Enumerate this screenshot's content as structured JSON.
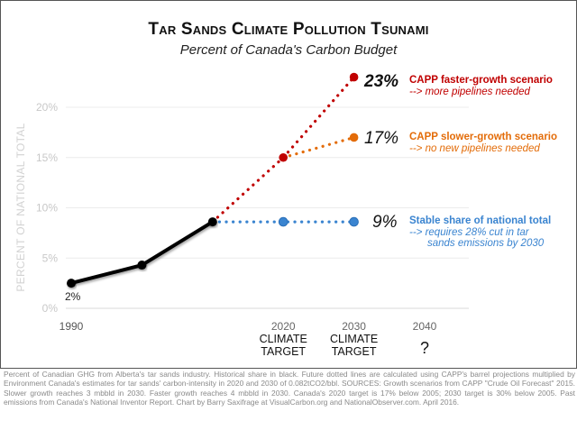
{
  "title": "Tar Sands Climate Pollution Tsunami",
  "subtitle": "Percent of Canada's Carbon Budget",
  "footer": "Percent of Canadian GHG from Alberta's tar sands industry. Historical share in black. Future dotted lines are calculated using CAPP's barrel projections multiplied by Environment Canada's estimates for tar sands' carbon-intensity in 2020 and 2030 of 0.082tCO2/bbl. SOURCES: Growth scenarios from CAPP \"Crude Oil Forecast\" 2015. Slower growth reaches 3 mbbld in 2030. Faster growth reaches 4 mbbld in 2030. Canada's 2020 target is 17% below 2005; 2030 target is 30% below 2005. Past emissions from Canada's National Inventor Report. Chart by Barry Saxifrage at VisualCarbon.org and NationalObserver.com. April 2016.",
  "chart_data": {
    "type": "line",
    "title": "Tar Sands Climate Pollution Tsunami",
    "subtitle": "Percent of Canada's Carbon Budget",
    "xlabel": "",
    "ylabel": "PERCENT OF NATIONAL TOTAL",
    "xlim": [
      1990,
      2040
    ],
    "ylim": [
      0,
      20
    ],
    "grid": true,
    "yticks": [
      {
        "value": 0,
        "label": "0%"
      },
      {
        "value": 5,
        "label": "5%"
      },
      {
        "value": 10,
        "label": "10%"
      },
      {
        "value": 15,
        "label": "15%"
      },
      {
        "value": 20,
        "label": "20%"
      }
    ],
    "xticks": [
      {
        "value": 1990,
        "label": "1990",
        "sublabel": ""
      },
      {
        "value": 2020,
        "label": "2020",
        "sublabel": "CLIMATE TARGET"
      },
      {
        "value": 2030,
        "label": "2030",
        "sublabel": "CLIMATE TARGET"
      },
      {
        "value": 2040,
        "label": "2040",
        "sublabel": "?"
      }
    ],
    "series": [
      {
        "name": "Historical share",
        "style": "solid",
        "color": "#000000",
        "x": [
          1990,
          2000,
          2010
        ],
        "y": [
          2.5,
          4.3,
          8.6
        ],
        "point_labels": [
          "2%",
          "",
          ""
        ]
      },
      {
        "name": "CAPP faster-growth scenario",
        "style": "dotted",
        "color": "#c00000",
        "x": [
          2010,
          2020,
          2030
        ],
        "y": [
          8.6,
          15.0,
          23.0
        ],
        "end_value_label": "23%",
        "annotation": "CAPP faster-growth scenario",
        "annotation_note": "--> more pipelines needed"
      },
      {
        "name": "CAPP slower-growth scenario",
        "style": "dotted",
        "color": "#e36c09",
        "x": [
          2020,
          2030
        ],
        "y": [
          15.0,
          17.0
        ],
        "end_value_label": "17%",
        "annotation": "CAPP slower-growth scenario",
        "annotation_note": "--> no new pipelines needed"
      },
      {
        "name": "Stable share of national total",
        "style": "dotted",
        "color": "#3a84d0",
        "x": [
          2010,
          2020,
          2030
        ],
        "y": [
          8.6,
          8.6,
          8.6
        ],
        "end_value_label": "9%",
        "annotation": "Stable share of national total",
        "annotation_note": "--> requires 28% cut in tar sands emissions by 2030"
      }
    ]
  }
}
